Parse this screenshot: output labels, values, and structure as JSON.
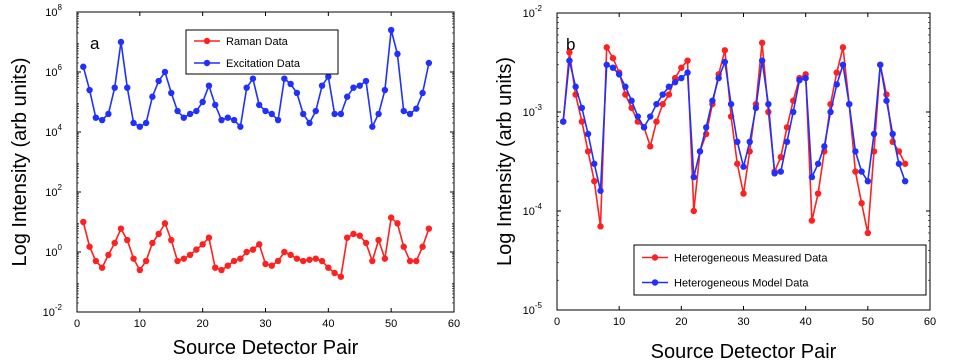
{
  "chart_data": [
    {
      "type": "line",
      "panel_label": "a",
      "xlabel": "Source Detector Pair",
      "ylabel": "Log  Intensity (arb units)",
      "xlim": [
        0,
        60
      ],
      "ylim": [
        0.01,
        100000000
      ],
      "yscale": "log",
      "xticks": [
        "0",
        "10",
        "20",
        "30",
        "40",
        "50",
        "60"
      ],
      "yticks": [
        {
          "base": "10",
          "exp": "-2"
        },
        {
          "base": "10",
          "exp": "0"
        },
        {
          "base": "10",
          "exp": "2"
        },
        {
          "base": "10",
          "exp": "4"
        },
        {
          "base": "10",
          "exp": "6"
        },
        {
          "base": "10",
          "exp": "8"
        }
      ],
      "legend_position": "top-center",
      "x": [
        1,
        2,
        3,
        4,
        5,
        6,
        7,
        8,
        9,
        10,
        11,
        12,
        13,
        14,
        15,
        16,
        17,
        18,
        19,
        20,
        21,
        22,
        23,
        24,
        25,
        26,
        27,
        28,
        29,
        30,
        31,
        32,
        33,
        34,
        35,
        36,
        37,
        38,
        39,
        40,
        41,
        42,
        43,
        44,
        45,
        46,
        47,
        48,
        49,
        50,
        51,
        52,
        53,
        54,
        55,
        56
      ],
      "series": [
        {
          "name": "Raman Data",
          "color": "#ff2020",
          "values": [
            10,
            1.5,
            0.5,
            0.3,
            0.8,
            2,
            6,
            2.5,
            0.6,
            0.25,
            0.5,
            2,
            4,
            9,
            2.5,
            0.5,
            0.6,
            0.8,
            1.2,
            1.8,
            3,
            0.3,
            0.25,
            0.35,
            0.5,
            0.6,
            1,
            1.2,
            1.8,
            0.4,
            0.35,
            0.5,
            1,
            0.8,
            0.6,
            0.5,
            0.55,
            0.6,
            0.5,
            0.3,
            0.2,
            0.15,
            3,
            4,
            3.5,
            2,
            0.5,
            2.5,
            0.6,
            14,
            9,
            1.5,
            0.5,
            0.5,
            1.5,
            6
          ]
        },
        {
          "name": "Excitation Data",
          "color": "#2030ff",
          "values": [
            1500000,
            250000,
            30000,
            25000,
            40000,
            300000,
            10000000,
            300000,
            20000,
            15000,
            20000,
            150000,
            500000,
            1000000,
            200000,
            50000,
            30000,
            40000,
            50000,
            100000,
            350000,
            80000,
            25000,
            30000,
            25000,
            15000,
            300000,
            600000,
            80000,
            50000,
            40000,
            25000,
            600000,
            400000,
            200000,
            40000,
            20000,
            50000,
            350000,
            700000,
            40000,
            40000,
            150000,
            300000,
            350000,
            500000,
            15000,
            40000,
            250000,
            25000000,
            4000000,
            50000,
            40000,
            60000,
            200000,
            2000000
          ]
        }
      ]
    },
    {
      "type": "line",
      "panel_label": "b",
      "xlabel": "Source Detector Pair",
      "ylabel": "Log  Intensity (arb units)",
      "xlim": [
        0,
        60
      ],
      "ylim": [
        1e-05,
        0.01
      ],
      "yscale": "log",
      "xticks": [
        "0",
        "10",
        "20",
        "30",
        "40",
        "50",
        "60"
      ],
      "yticks": [
        {
          "base": "10",
          "exp": "-5"
        },
        {
          "base": "10",
          "exp": "-4"
        },
        {
          "base": "10",
          "exp": "-3"
        },
        {
          "base": "10",
          "exp": "-2"
        }
      ],
      "legend_position": "bottom-right",
      "x": [
        1,
        2,
        3,
        4,
        5,
        6,
        7,
        8,
        9,
        10,
        11,
        12,
        13,
        14,
        15,
        16,
        17,
        18,
        19,
        20,
        21,
        22,
        23,
        24,
        25,
        26,
        27,
        28,
        29,
        30,
        31,
        32,
        33,
        34,
        35,
        36,
        37,
        38,
        39,
        40,
        41,
        42,
        43,
        44,
        45,
        46,
        47,
        48,
        49,
        50,
        51,
        52,
        53,
        54,
        55,
        56
      ],
      "series": [
        {
          "name": "Heterogeneous Measured Data",
          "color": "#ff2020",
          "values": [
            0.0008,
            0.004,
            0.0015,
            0.0008,
            0.0004,
            0.0002,
            7e-05,
            0.0045,
            0.0035,
            0.0025,
            0.0015,
            0.0011,
            0.0008,
            0.0007,
            0.00045,
            0.0008,
            0.0012,
            0.0015,
            0.0022,
            0.0028,
            0.0033,
            0.0001,
            0.0004,
            0.0006,
            0.0012,
            0.0024,
            0.0042,
            0.0009,
            0.0003,
            0.00015,
            0.0004,
            0.0012,
            0.005,
            0.001,
            0.00025,
            0.00035,
            0.0007,
            0.0013,
            0.0022,
            0.0024,
            8e-05,
            0.00015,
            0.0004,
            0.0012,
            0.0025,
            0.0045,
            0.0012,
            0.00025,
            0.00012,
            6e-05,
            0.0004,
            0.003,
            0.0015,
            0.0005,
            0.0004,
            0.0003
          ]
        },
        {
          "name": "Heterogeneous Model Data",
          "color": "#2030ff",
          "values": [
            0.0008,
            0.0033,
            0.0018,
            0.0011,
            0.0006,
            0.0003,
            0.00016,
            0.003,
            0.0028,
            0.0024,
            0.0018,
            0.0013,
            0.0009,
            0.0007,
            0.0009,
            0.0012,
            0.0015,
            0.0018,
            0.002,
            0.0022,
            0.0025,
            0.00022,
            0.0004,
            0.0007,
            0.0013,
            0.0022,
            0.0032,
            0.0012,
            0.0005,
            0.00028,
            0.0005,
            0.0011,
            0.0033,
            0.0012,
            0.00024,
            0.00025,
            0.0005,
            0.001,
            0.0021,
            0.0022,
            0.00022,
            0.0003,
            0.00045,
            0.001,
            0.0019,
            0.003,
            0.0012,
            0.0004,
            0.00025,
            0.0002,
            0.0006,
            0.003,
            0.0013,
            0.0006,
            0.0003,
            0.0002
          ]
        }
      ]
    }
  ]
}
